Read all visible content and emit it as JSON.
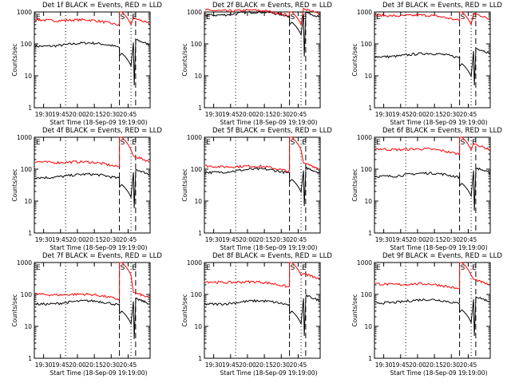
{
  "figure": {
    "ylabel": "Counts/sec",
    "xlabel": "Start Time (18-Sep-09 19:19:00)",
    "black_label": "BLACK = Events",
    "red_label": "RED = LLD",
    "marker_labels": [
      "E",
      "S",
      "E"
    ]
  },
  "chart_data": [
    {
      "type": "line",
      "title": "Det 1f  BLACK = Events, RED = LLD",
      "xlabel": "Start Time (18-Sep-09 19:19:00)",
      "ylabel": "Counts/sec",
      "xticks": [
        "19:30",
        "19:45",
        "20:00",
        "20:15",
        "20:30",
        "20:45"
      ],
      "yticks": [
        "1",
        "10",
        "100",
        "1000"
      ],
      "ylim": [
        1,
        1000
      ],
      "yscale": "log",
      "series": [
        {
          "name": "Events",
          "color": "#000000",
          "level": 85,
          "post": 110,
          "dip": 5,
          "peak": null
        },
        {
          "name": "LLD",
          "color": "#ff0000",
          "level": 500,
          "post": 500,
          "dip": null,
          "peak": 1000
        }
      ]
    },
    {
      "type": "line",
      "title": "Det 2f  BLACK = Events, RED = LLD",
      "xlabel": "Start Time (18-Sep-09 19:19:00)",
      "ylabel": "Counts/sec",
      "xticks": [
        "19:30",
        "19:45",
        "20:00",
        "20:15",
        "20:30",
        "20:45"
      ],
      "yticks": [
        "1",
        "10",
        "100",
        "1000"
      ],
      "ylim": [
        1,
        1000
      ],
      "yscale": "log",
      "series": [
        {
          "name": "Events",
          "color": "#000000",
          "level": 800,
          "post": 800,
          "dip": 40,
          "peak": null
        },
        {
          "name": "LLD",
          "color": "#ff0000",
          "level": 1000,
          "post": 1000,
          "dip": null,
          "peak": 1000
        }
      ]
    },
    {
      "type": "line",
      "title": "Det 3f  BLACK = Events, RED = LLD",
      "xlabel": "Start Time (18-Sep-09 19:19:00)",
      "ylabel": "Counts/sec",
      "xticks": [
        "19:30",
        "19:45",
        "20:00",
        "20:15",
        "20:30",
        "20:45"
      ],
      "yticks": [
        "1",
        "10",
        "100",
        "1000"
      ],
      "ylim": [
        1,
        1000
      ],
      "yscale": "log",
      "series": [
        {
          "name": "Events",
          "color": "#000000",
          "level": 40,
          "post": 60,
          "dip": 5,
          "peak": null
        },
        {
          "name": "LLD",
          "color": "#ff0000",
          "level": 700,
          "post": 700,
          "dip": null,
          "peak": 1000
        }
      ]
    },
    {
      "type": "line",
      "title": "Det 4f  BLACK = Events, RED = LLD",
      "xlabel": "Start Time (18-Sep-09 19:19:00)",
      "ylabel": "Counts/sec",
      "xticks": [
        "19:30",
        "19:45",
        "20:00",
        "20:15",
        "20:30",
        "20:45"
      ],
      "yticks": [
        "1",
        "10",
        "100",
        "1000"
      ],
      "ylim": [
        1,
        1000
      ],
      "yscale": "log",
      "series": [
        {
          "name": "Events",
          "color": "#000000",
          "level": 55,
          "post": 80,
          "dip": 6,
          "peak": null
        },
        {
          "name": "LLD",
          "color": "#ff0000",
          "level": 150,
          "post": 200,
          "dip": null,
          "peak": 1000
        }
      ]
    },
    {
      "type": "line",
      "title": "Det 5f  BLACK = Events, RED = LLD",
      "xlabel": "Start Time (18-Sep-09 19:19:00)",
      "ylabel": "Counts/sec",
      "xticks": [
        "19:30",
        "19:45",
        "20:00",
        "20:15",
        "20:30",
        "20:45"
      ],
      "yticks": [
        "1",
        "10",
        "100",
        "1000"
      ],
      "ylim": [
        1,
        1000
      ],
      "yscale": "log",
      "series": [
        {
          "name": "Events",
          "color": "#000000",
          "level": 80,
          "post": 90,
          "dip": 7,
          "peak": null
        },
        {
          "name": "LLD",
          "color": "#ff0000",
          "level": 110,
          "post": 120,
          "dip": null,
          "peak": 1000
        }
      ]
    },
    {
      "type": "line",
      "title": "Det 6f  BLACK = Events, RED = LLD",
      "xlabel": "Start Time (18-Sep-09 19:19:00)",
      "ylabel": "Counts/sec",
      "xticks": [
        "19:30",
        "19:45",
        "20:00",
        "20:15",
        "20:30",
        "20:45"
      ],
      "yticks": [
        "1",
        "10",
        "100",
        "1000"
      ],
      "ylim": [
        1,
        1000
      ],
      "yscale": "log",
      "series": [
        {
          "name": "Events",
          "color": "#000000",
          "level": 60,
          "post": 90,
          "dip": 5,
          "peak": null
        },
        {
          "name": "LLD",
          "color": "#ff0000",
          "level": 380,
          "post": 480,
          "dip": null,
          "peak": 1000
        }
      ]
    },
    {
      "type": "line",
      "title": "Det 7f  BLACK = Events, RED = LLD",
      "xlabel": "Start Time (18-Sep-09 19:19:00)",
      "ylabel": "Counts/sec",
      "xticks": [
        "19:30",
        "19:45",
        "20:00",
        "20:15",
        "20:30",
        "20:45"
      ],
      "yticks": [
        "1",
        "10",
        "100",
        "1000"
      ],
      "ylim": [
        1,
        1000
      ],
      "yscale": "log",
      "series": [
        {
          "name": "Events",
          "color": "#000000",
          "level": 50,
          "post": 60,
          "dip": 4,
          "peak": null
        },
        {
          "name": "LLD",
          "color": "#ff0000",
          "level": 90,
          "post": 90,
          "dip": null,
          "peak": 1000
        }
      ]
    },
    {
      "type": "line",
      "title": "Det 8f  BLACK = Events, RED = LLD",
      "xlabel": "Start Time (18-Sep-09 19:19:00)",
      "ylabel": "Counts/sec",
      "xticks": [
        "19:30",
        "19:45",
        "20:00",
        "20:15",
        "20:30",
        "20:45"
      ],
      "yticks": [
        "1",
        "10",
        "100",
        "1000"
      ],
      "ylim": [
        1,
        1000
      ],
      "yscale": "log",
      "series": [
        {
          "name": "Events",
          "color": "#000000",
          "level": 50,
          "post": 75,
          "dip": 5,
          "peak": null
        },
        {
          "name": "LLD",
          "color": "#ff0000",
          "level": 220,
          "post": 350,
          "dip": null,
          "peak": 1000
        }
      ]
    },
    {
      "type": "line",
      "title": "Det 9f  BLACK = Events, RED = LLD",
      "xlabel": "Start Time (18-Sep-09 19:19:00)",
      "ylabel": "Counts/sec",
      "xticks": [
        "19:30",
        "19:45",
        "20:00",
        "20:15",
        "20:30",
        "20:45"
      ],
      "yticks": [
        "1",
        "10",
        "100",
        "1000"
      ],
      "ylim": [
        1,
        1000
      ],
      "yscale": "log",
      "series": [
        {
          "name": "Events",
          "color": "#000000",
          "level": 55,
          "post": 70,
          "dip": 5,
          "peak": null
        },
        {
          "name": "LLD",
          "color": "#ff0000",
          "level": 190,
          "post": 230,
          "dip": null,
          "peak": 1000
        }
      ]
    }
  ]
}
